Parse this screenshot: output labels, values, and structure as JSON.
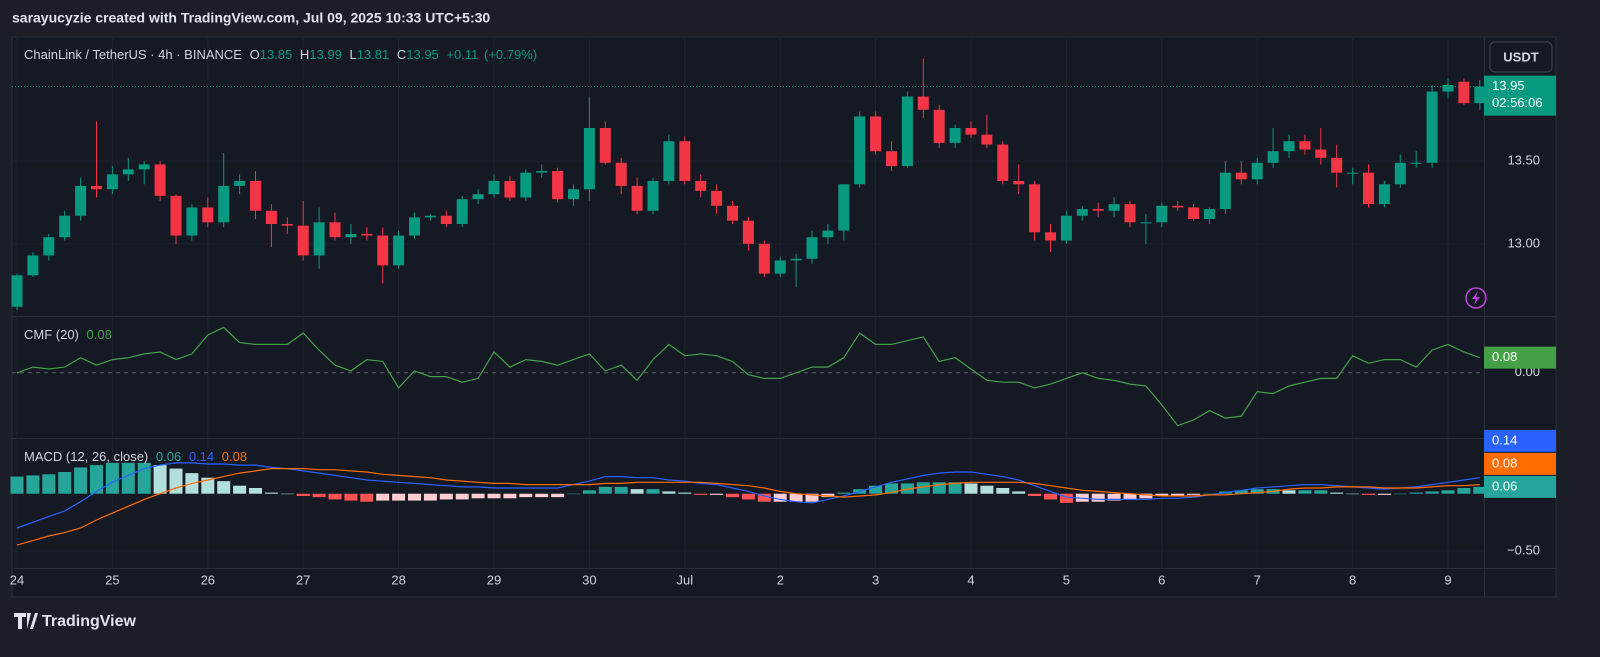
{
  "header": "sarayucyzie created with TradingView.com, Jul 09, 2025 10:33 UTC+5:30",
  "currency_button": "USDT",
  "brand": "TradingView",
  "chart_data": [
    {
      "type": "candlestick",
      "symbol": "ChainLink / TetherUS · 4h · BINANCE",
      "ohlc_labels": [
        "O",
        "H",
        "L",
        "C"
      ],
      "legend_values": [
        13.85,
        13.99,
        13.81,
        13.95
      ],
      "change": {
        "value": 0.11,
        "label": "+0.11"
      },
      "change_pct": {
        "value": 0.79,
        "label": "(+0.79%)"
      },
      "last_price": 13.95,
      "countdown": "02:56:06",
      "up_color": "#089981",
      "down_color": "#f23645",
      "categories": [
        "24",
        null,
        null,
        null,
        null,
        null,
        "25",
        null,
        null,
        null,
        null,
        null,
        "26",
        null,
        null,
        null,
        null,
        null,
        "27",
        null,
        null,
        null,
        null,
        null,
        "28",
        null,
        null,
        null,
        null,
        null,
        "29",
        null,
        null,
        null,
        null,
        null,
        "30",
        null,
        null,
        null,
        null,
        null,
        "Jul",
        null,
        null,
        null,
        null,
        null,
        "2",
        null,
        null,
        null,
        null,
        null,
        "3",
        null,
        null,
        null,
        null,
        null,
        "4",
        null,
        null,
        null,
        null,
        null,
        "5",
        null,
        null,
        null,
        null,
        null,
        "6",
        null,
        null,
        null,
        null,
        null,
        "7",
        null,
        null,
        null,
        null,
        null,
        "8",
        null,
        null,
        null,
        null,
        null,
        "9",
        null,
        null
      ],
      "ohlc": [
        [
          12.62,
          12.82,
          12.6,
          12.81
        ],
        [
          12.81,
          12.95,
          12.8,
          12.93
        ],
        [
          12.93,
          13.06,
          12.9,
          13.04
        ],
        [
          13.04,
          13.2,
          13.02,
          13.17
        ],
        [
          13.17,
          13.4,
          13.14,
          13.35
        ],
        [
          13.35,
          13.74,
          13.28,
          13.33
        ],
        [
          13.33,
          13.47,
          13.3,
          13.42
        ],
        [
          13.42,
          13.52,
          13.38,
          13.45
        ],
        [
          13.45,
          13.5,
          13.36,
          13.48
        ],
        [
          13.48,
          13.5,
          13.26,
          13.29
        ],
        [
          13.29,
          13.3,
          13.0,
          13.05
        ],
        [
          13.05,
          13.24,
          13.02,
          13.22
        ],
        [
          13.22,
          13.28,
          13.1,
          13.13
        ],
        [
          13.13,
          13.55,
          13.1,
          13.35
        ],
        [
          13.35,
          13.42,
          13.3,
          13.38
        ],
        [
          13.38,
          13.44,
          13.15,
          13.2
        ],
        [
          13.2,
          13.24,
          12.98,
          13.12
        ],
        [
          13.12,
          13.16,
          13.06,
          13.11
        ],
        [
          13.11,
          13.26,
          12.9,
          12.93
        ],
        [
          12.93,
          13.22,
          12.85,
          13.13
        ],
        [
          13.13,
          13.19,
          13.02,
          13.04
        ],
        [
          13.04,
          13.12,
          13.0,
          13.06
        ],
        [
          13.06,
          13.1,
          13.02,
          13.05
        ],
        [
          13.05,
          13.1,
          12.76,
          12.87
        ],
        [
          12.87,
          13.08,
          12.85,
          13.05
        ],
        [
          13.05,
          13.19,
          13.03,
          13.16
        ],
        [
          13.16,
          13.18,
          13.14,
          13.17
        ],
        [
          13.17,
          13.2,
          13.1,
          13.12
        ],
        [
          13.12,
          13.29,
          13.1,
          13.27
        ],
        [
          13.27,
          13.33,
          13.24,
          13.3
        ],
        [
          13.3,
          13.42,
          13.28,
          13.38
        ],
        [
          13.38,
          13.41,
          13.26,
          13.28
        ],
        [
          13.28,
          13.45,
          13.26,
          13.43
        ],
        [
          13.43,
          13.48,
          13.4,
          13.44
        ],
        [
          13.44,
          13.46,
          13.25,
          13.27
        ],
        [
          13.27,
          13.36,
          13.23,
          13.33
        ],
        [
          13.33,
          13.89,
          13.26,
          13.7
        ],
        [
          13.7,
          13.74,
          13.48,
          13.49
        ],
        [
          13.49,
          13.52,
          13.3,
          13.35
        ],
        [
          13.35,
          13.4,
          13.18,
          13.2
        ],
        [
          13.2,
          13.4,
          13.18,
          13.38
        ],
        [
          13.38,
          13.66,
          13.36,
          13.62
        ],
        [
          13.62,
          13.65,
          13.36,
          13.38
        ],
        [
          13.38,
          13.42,
          13.28,
          13.32
        ],
        [
          13.32,
          13.36,
          13.18,
          13.23
        ],
        [
          13.23,
          13.26,
          13.12,
          13.14
        ],
        [
          13.14,
          13.16,
          12.96,
          13.0
        ],
        [
          13.0,
          13.02,
          12.8,
          12.82
        ],
        [
          12.82,
          12.92,
          12.8,
          12.9
        ],
        [
          12.9,
          12.94,
          12.74,
          12.91
        ],
        [
          12.91,
          13.08,
          12.88,
          13.04
        ],
        [
          13.04,
          13.12,
          13.0,
          13.08
        ],
        [
          13.08,
          13.36,
          13.02,
          13.36
        ],
        [
          13.36,
          13.8,
          13.34,
          13.77
        ],
        [
          13.77,
          13.8,
          13.54,
          13.56
        ],
        [
          13.56,
          13.62,
          13.44,
          13.47
        ],
        [
          13.47,
          13.92,
          13.46,
          13.89
        ],
        [
          13.89,
          14.12,
          13.76,
          13.81
        ],
        [
          13.81,
          13.84,
          13.58,
          13.61
        ],
        [
          13.61,
          13.72,
          13.58,
          13.7
        ],
        [
          13.7,
          13.74,
          13.64,
          13.66
        ],
        [
          13.66,
          13.78,
          13.58,
          13.6
        ],
        [
          13.6,
          13.62,
          13.36,
          13.38
        ],
        [
          13.38,
          13.48,
          13.3,
          13.36
        ],
        [
          13.36,
          13.38,
          13.02,
          13.07
        ],
        [
          13.07,
          13.12,
          12.95,
          13.02
        ],
        [
          13.02,
          13.2,
          13.0,
          13.17
        ],
        [
          13.17,
          13.23,
          13.14,
          13.21
        ],
        [
          13.21,
          13.25,
          13.16,
          13.2
        ],
        [
          13.2,
          13.28,
          13.16,
          13.24
        ],
        [
          13.24,
          13.26,
          13.1,
          13.13
        ],
        [
          13.13,
          13.18,
          13.0,
          13.13
        ],
        [
          13.13,
          13.25,
          13.1,
          13.23
        ],
        [
          13.23,
          13.26,
          13.2,
          13.22
        ],
        [
          13.22,
          13.24,
          13.14,
          13.15
        ],
        [
          13.15,
          13.22,
          13.12,
          13.21
        ],
        [
          13.21,
          13.5,
          13.18,
          13.43
        ],
        [
          13.43,
          13.5,
          13.36,
          13.39
        ],
        [
          13.39,
          13.52,
          13.36,
          13.49
        ],
        [
          13.49,
          13.7,
          13.46,
          13.56
        ],
        [
          13.56,
          13.66,
          13.52,
          13.62
        ],
        [
          13.62,
          13.66,
          13.54,
          13.57
        ],
        [
          13.57,
          13.7,
          13.48,
          13.52
        ],
        [
          13.52,
          13.6,
          13.34,
          13.43
        ],
        [
          13.43,
          13.46,
          13.36,
          13.43
        ],
        [
          13.43,
          13.48,
          13.22,
          13.24
        ],
        [
          13.24,
          13.38,
          13.22,
          13.36
        ],
        [
          13.36,
          13.54,
          13.34,
          13.49
        ],
        [
          13.49,
          13.56,
          13.46,
          13.49
        ],
        [
          13.49,
          13.96,
          13.46,
          13.92
        ],
        [
          13.92,
          14.0,
          13.88,
          13.96
        ],
        [
          13.98,
          14.0,
          13.84,
          13.85
        ],
        [
          13.85,
          13.99,
          13.81,
          13.95
        ]
      ],
      "ylim": [
        12.57,
        14.25
      ],
      "yticks": [
        {
          "value": 13,
          "label": "13.00"
        },
        {
          "value": 13.5,
          "label": "13.50"
        }
      ],
      "grid": true
    },
    {
      "type": "line",
      "title": "CMF (20)",
      "last_value": 0.08,
      "color": "#43a047",
      "values": [
        0.0,
        0.03,
        0.02,
        0.03,
        0.08,
        0.04,
        0.07,
        0.08,
        0.1,
        0.11,
        0.07,
        0.1,
        0.2,
        0.24,
        0.16,
        0.15,
        0.15,
        0.15,
        0.21,
        0.12,
        0.04,
        0.01,
        0.07,
        0.06,
        -0.08,
        0.01,
        -0.02,
        -0.02,
        -0.05,
        -0.03,
        0.11,
        0.03,
        0.07,
        0.06,
        0.04,
        0.07,
        0.1,
        0.01,
        0.04,
        -0.04,
        0.07,
        0.15,
        0.09,
        0.1,
        0.09,
        0.06,
        -0.01,
        -0.03,
        -0.03,
        0.0,
        0.03,
        0.03,
        0.08,
        0.21,
        0.15,
        0.15,
        0.17,
        0.19,
        0.06,
        0.08,
        0.02,
        -0.04,
        -0.05,
        -0.05,
        -0.08,
        -0.06,
        -0.03,
        0.0,
        -0.03,
        -0.04,
        -0.06,
        -0.07,
        -0.17,
        -0.28,
        -0.25,
        -0.2,
        -0.24,
        -0.23,
        -0.1,
        -0.11,
        -0.07,
        -0.05,
        -0.03,
        -0.03,
        0.09,
        0.05,
        0.07,
        0.07,
        0.03,
        0.12,
        0.15,
        0.11,
        0.08
      ],
      "ylim": [
        -0.34,
        0.29
      ],
      "yticks": [
        {
          "value": 0,
          "label": "0.00"
        }
      ]
    },
    {
      "type": "macd",
      "title": "MACD (12, 26, close)",
      "legend_values": [
        0.06,
        0.14,
        0.08
      ],
      "histogram": {
        "colors": [
          "#26a69a",
          "#b2dfdb",
          "#ff5252",
          "#ffcdd2"
        ],
        "label_color": "#26a69a",
        "values": [
          0.15,
          0.16,
          0.17,
          0.19,
          0.23,
          0.25,
          0.27,
          0.27,
          0.27,
          0.25,
          0.22,
          0.18,
          0.14,
          0.11,
          0.07,
          0.05,
          0.01,
          0.0,
          -0.02,
          -0.03,
          -0.05,
          -0.06,
          -0.07,
          -0.06,
          -0.06,
          -0.06,
          -0.06,
          -0.05,
          -0.05,
          -0.04,
          -0.04,
          -0.04,
          -0.03,
          -0.03,
          -0.03,
          0.0,
          0.03,
          0.06,
          0.06,
          0.04,
          0.04,
          0.02,
          0.01,
          -0.01,
          -0.01,
          -0.03,
          -0.05,
          -0.07,
          -0.07,
          -0.07,
          -0.07,
          -0.03,
          0.01,
          0.04,
          0.07,
          0.09,
          0.09,
          0.1,
          0.1,
          0.1,
          0.09,
          0.07,
          0.05,
          0.02,
          -0.02,
          -0.05,
          -0.08,
          -0.07,
          -0.07,
          -0.06,
          -0.05,
          -0.04,
          -0.02,
          -0.02,
          -0.01,
          0.0,
          0.02,
          0.03,
          0.04,
          0.04,
          0.03,
          0.03,
          0.03,
          0.01,
          0.0,
          -0.01,
          -0.01,
          0.0,
          0.01,
          0.02,
          0.03,
          0.05,
          0.06
        ]
      },
      "macd": {
        "color": "#2962ff",
        "values": [
          -0.3,
          -0.25,
          -0.2,
          -0.15,
          -0.07,
          0.02,
          0.1,
          0.16,
          0.22,
          0.25,
          0.27,
          0.27,
          0.26,
          0.26,
          0.25,
          0.25,
          0.23,
          0.22,
          0.2,
          0.18,
          0.16,
          0.14,
          0.12,
          0.11,
          0.1,
          0.09,
          0.08,
          0.07,
          0.06,
          0.06,
          0.05,
          0.05,
          0.05,
          0.05,
          0.05,
          0.08,
          0.11,
          0.15,
          0.15,
          0.14,
          0.14,
          0.12,
          0.11,
          0.09,
          0.08,
          0.05,
          0.02,
          -0.02,
          -0.05,
          -0.07,
          -0.08,
          -0.05,
          -0.02,
          0.02,
          0.06,
          0.1,
          0.13,
          0.16,
          0.18,
          0.19,
          0.19,
          0.17,
          0.15,
          0.12,
          0.07,
          0.02,
          -0.03,
          -0.04,
          -0.05,
          -0.05,
          -0.05,
          -0.05,
          -0.04,
          -0.04,
          -0.03,
          -0.01,
          0.01,
          0.03,
          0.05,
          0.06,
          0.07,
          0.08,
          0.08,
          0.07,
          0.06,
          0.05,
          0.04,
          0.05,
          0.06,
          0.08,
          0.1,
          0.12,
          0.14
        ]
      },
      "signal": {
        "color": "#ff6d00",
        "values": [
          -0.45,
          -0.41,
          -0.37,
          -0.34,
          -0.3,
          -0.23,
          -0.17,
          -0.11,
          -0.05,
          0.0,
          0.05,
          0.09,
          0.12,
          0.15,
          0.18,
          0.2,
          0.22,
          0.22,
          0.22,
          0.21,
          0.21,
          0.2,
          0.19,
          0.17,
          0.16,
          0.15,
          0.14,
          0.12,
          0.11,
          0.1,
          0.09,
          0.09,
          0.08,
          0.08,
          0.08,
          0.08,
          0.08,
          0.09,
          0.09,
          0.1,
          0.1,
          0.1,
          0.1,
          0.1,
          0.09,
          0.08,
          0.07,
          0.05,
          0.02,
          0.0,
          -0.01,
          -0.02,
          -0.03,
          -0.02,
          -0.01,
          0.01,
          0.04,
          0.06,
          0.08,
          0.09,
          0.1,
          0.1,
          0.1,
          0.1,
          0.09,
          0.07,
          0.05,
          0.03,
          0.02,
          0.01,
          0.0,
          -0.01,
          -0.02,
          -0.02,
          -0.02,
          -0.01,
          -0.01,
          0.0,
          0.01,
          0.02,
          0.04,
          0.05,
          0.05,
          0.06,
          0.06,
          0.06,
          0.05,
          0.05,
          0.05,
          0.06,
          0.07,
          0.07,
          0.08
        ]
      },
      "ylim": [
        -0.65,
        0.47
      ],
      "yticks": [
        {
          "value": -0.5,
          "label": "−0.50"
        }
      ]
    }
  ]
}
